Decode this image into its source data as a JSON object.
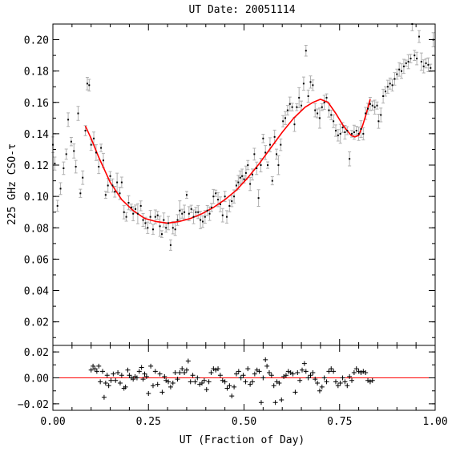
{
  "chart_data": {
    "type": "scatter",
    "title": "UT Date: 20051114",
    "xlabel": "UT (Fraction of Day)",
    "ylabel": "225 GHz CSO-τ",
    "colors": {
      "points": "#000000",
      "error_bars": "#b0b0b0",
      "fit": "#ff0000",
      "zero_line": "#ff0000",
      "axes": "#000000"
    },
    "main_panel": {
      "xlim": [
        0.0,
        1.0
      ],
      "ylim": [
        0.005,
        0.21
      ],
      "xticks": [
        0.0,
        0.25,
        0.5,
        0.75,
        1.0
      ],
      "xtick_labels": [
        "0.00",
        "0.25",
        "0.50",
        "0.75",
        "1.00"
      ],
      "yticks": [
        0.02,
        0.04,
        0.06,
        0.08,
        0.1,
        0.12,
        0.14,
        0.16,
        0.18,
        0.2
      ],
      "ytick_labels": [
        "0.02",
        "0.04",
        "0.06",
        "0.08",
        "0.10",
        "0.12",
        "0.14",
        "0.16",
        "0.18",
        "0.20"
      ],
      "points": [
        [
          0.0,
          0.133
        ],
        [
          0.005,
          0.121
        ],
        [
          0.012,
          0.094
        ],
        [
          0.02,
          0.105
        ],
        [
          0.028,
          0.118
        ],
        [
          0.035,
          0.127
        ],
        [
          0.04,
          0.149
        ],
        [
          0.048,
          0.135
        ],
        [
          0.055,
          0.129
        ],
        [
          0.06,
          0.119
        ],
        [
          0.066,
          0.153
        ],
        [
          0.072,
          0.102
        ],
        [
          0.078,
          0.112
        ],
        [
          0.085,
          0.142
        ],
        [
          0.09,
          0.172
        ],
        [
          0.095,
          0.171
        ],
        [
          0.1,
          0.133
        ],
        [
          0.107,
          0.137
        ],
        [
          0.113,
          0.128
        ],
        [
          0.12,
          0.119
        ],
        [
          0.126,
          0.131
        ],
        [
          0.132,
          0.123
        ],
        [
          0.138,
          0.101
        ],
        [
          0.144,
          0.107
        ],
        [
          0.15,
          0.113
        ],
        [
          0.156,
          0.107
        ],
        [
          0.162,
          0.103
        ],
        [
          0.168,
          0.109
        ],
        [
          0.175,
          0.102
        ],
        [
          0.18,
          0.109
        ],
        [
          0.186,
          0.09
        ],
        [
          0.192,
          0.087
        ],
        [
          0.198,
          0.096
        ],
        [
          0.205,
          0.093
        ],
        [
          0.21,
          0.089
        ],
        [
          0.216,
          0.092
        ],
        [
          0.222,
          0.089
        ],
        [
          0.23,
          0.094
        ],
        [
          0.236,
          0.085
        ],
        [
          0.242,
          0.083
        ],
        [
          0.248,
          0.08
        ],
        [
          0.255,
          0.087
        ],
        [
          0.262,
          0.079
        ],
        [
          0.268,
          0.087
        ],
        [
          0.274,
          0.088
        ],
        [
          0.28,
          0.081
        ],
        [
          0.285,
          0.076
        ],
        [
          0.29,
          0.085
        ],
        [
          0.296,
          0.08
        ],
        [
          0.302,
          0.083
        ],
        [
          0.308,
          0.069
        ],
        [
          0.314,
          0.08
        ],
        [
          0.32,
          0.079
        ],
        [
          0.326,
          0.085
        ],
        [
          0.332,
          0.091
        ],
        [
          0.338,
          0.089
        ],
        [
          0.344,
          0.09
        ],
        [
          0.35,
          0.101
        ],
        [
          0.356,
          0.089
        ],
        [
          0.362,
          0.092
        ],
        [
          0.368,
          0.087
        ],
        [
          0.374,
          0.09
        ],
        [
          0.38,
          0.09
        ],
        [
          0.386,
          0.085
        ],
        [
          0.392,
          0.084
        ],
        [
          0.398,
          0.087
        ],
        [
          0.404,
          0.091
        ],
        [
          0.41,
          0.089
        ],
        [
          0.415,
          0.093
        ],
        [
          0.42,
          0.1
        ],
        [
          0.426,
          0.102
        ],
        [
          0.432,
          0.098
        ],
        [
          0.438,
          0.095
        ],
        [
          0.444,
          0.088
        ],
        [
          0.45,
          0.1
        ],
        [
          0.455,
          0.087
        ],
        [
          0.462,
          0.094
        ],
        [
          0.468,
          0.097
        ],
        [
          0.474,
          0.1
        ],
        [
          0.48,
          0.107
        ],
        [
          0.485,
          0.109
        ],
        [
          0.49,
          0.112
        ],
        [
          0.495,
          0.113
        ],
        [
          0.5,
          0.111
        ],
        [
          0.505,
          0.115
        ],
        [
          0.51,
          0.12
        ],
        [
          0.516,
          0.108
        ],
        [
          0.522,
          0.114
        ],
        [
          0.527,
          0.127
        ],
        [
          0.533,
          0.118
        ],
        [
          0.538,
          0.099
        ],
        [
          0.544,
          0.12
        ],
        [
          0.55,
          0.137
        ],
        [
          0.556,
          0.128
        ],
        [
          0.562,
          0.12
        ],
        [
          0.568,
          0.133
        ],
        [
          0.574,
          0.11
        ],
        [
          0.58,
          0.138
        ],
        [
          0.585,
          0.127
        ],
        [
          0.59,
          0.12
        ],
        [
          0.596,
          0.133
        ],
        [
          0.602,
          0.148
        ],
        [
          0.608,
          0.15
        ],
        [
          0.614,
          0.155
        ],
        [
          0.62,
          0.159
        ],
        [
          0.626,
          0.157
        ],
        [
          0.632,
          0.146
        ],
        [
          0.638,
          0.157
        ],
        [
          0.644,
          0.163
        ],
        [
          0.65,
          0.158
        ],
        [
          0.656,
          0.172
        ],
        [
          0.662,
          0.193
        ],
        [
          0.668,
          0.164
        ],
        [
          0.674,
          0.173
        ],
        [
          0.68,
          0.171
        ],
        [
          0.686,
          0.155
        ],
        [
          0.692,
          0.153
        ],
        [
          0.698,
          0.15
        ],
        [
          0.704,
          0.157
        ],
        [
          0.71,
          0.16
        ],
        [
          0.716,
          0.163
        ],
        [
          0.722,
          0.155
        ],
        [
          0.728,
          0.152
        ],
        [
          0.734,
          0.148
        ],
        [
          0.74,
          0.142
        ],
        [
          0.746,
          0.139
        ],
        [
          0.752,
          0.14
        ],
        [
          0.758,
          0.144
        ],
        [
          0.764,
          0.141
        ],
        [
          0.77,
          0.142
        ],
        [
          0.776,
          0.124
        ],
        [
          0.782,
          0.14
        ],
        [
          0.788,
          0.141
        ],
        [
          0.794,
          0.142
        ],
        [
          0.8,
          0.14
        ],
        [
          0.806,
          0.143
        ],
        [
          0.812,
          0.14
        ],
        [
          0.818,
          0.153
        ],
        [
          0.824,
          0.156
        ],
        [
          0.83,
          0.159
        ],
        [
          0.836,
          0.158
        ],
        [
          0.842,
          0.157
        ],
        [
          0.848,
          0.158
        ],
        [
          0.852,
          0.148
        ],
        [
          0.858,
          0.152
        ],
        [
          0.864,
          0.164
        ],
        [
          0.87,
          0.167
        ],
        [
          0.876,
          0.17
        ],
        [
          0.882,
          0.172
        ],
        [
          0.888,
          0.171
        ],
        [
          0.894,
          0.175
        ],
        [
          0.9,
          0.178
        ],
        [
          0.906,
          0.181
        ],
        [
          0.912,
          0.18
        ],
        [
          0.918,
          0.183
        ],
        [
          0.924,
          0.185
        ],
        [
          0.93,
          0.186
        ],
        [
          0.936,
          0.188
        ],
        [
          0.94,
          0.21
        ],
        [
          0.946,
          0.19
        ],
        [
          0.952,
          0.188
        ],
        [
          0.958,
          0.202
        ],
        [
          0.964,
          0.186
        ],
        [
          0.97,
          0.183
        ],
        [
          0.976,
          0.185
        ],
        [
          0.982,
          0.184
        ],
        [
          0.988,
          0.182
        ],
        [
          0.995,
          0.2
        ]
      ],
      "fit_curve": [
        [
          0.085,
          0.145
        ],
        [
          0.1,
          0.137
        ],
        [
          0.12,
          0.125
        ],
        [
          0.15,
          0.109
        ],
        [
          0.18,
          0.098
        ],
        [
          0.21,
          0.091
        ],
        [
          0.24,
          0.086
        ],
        [
          0.27,
          0.084
        ],
        [
          0.3,
          0.083
        ],
        [
          0.33,
          0.084
        ],
        [
          0.36,
          0.086
        ],
        [
          0.39,
          0.089
        ],
        [
          0.42,
          0.093
        ],
        [
          0.45,
          0.098
        ],
        [
          0.48,
          0.104
        ],
        [
          0.51,
          0.112
        ],
        [
          0.54,
          0.121
        ],
        [
          0.57,
          0.131
        ],
        [
          0.6,
          0.141
        ],
        [
          0.63,
          0.15
        ],
        [
          0.66,
          0.157
        ],
        [
          0.68,
          0.16
        ],
        [
          0.7,
          0.162
        ],
        [
          0.72,
          0.16
        ],
        [
          0.74,
          0.153
        ],
        [
          0.76,
          0.145
        ],
        [
          0.78,
          0.139
        ],
        [
          0.79,
          0.138
        ],
        [
          0.8,
          0.139
        ],
        [
          0.81,
          0.145
        ],
        [
          0.82,
          0.153
        ],
        [
          0.83,
          0.162
        ]
      ]
    },
    "residual_panel": {
      "xlim": [
        0.0,
        1.0
      ],
      "ylim": [
        -0.025,
        0.025
      ],
      "yticks": [
        -0.02,
        0.0,
        0.02
      ],
      "ytick_labels": [
        "−0.02",
        "0.00",
        "0.02"
      ],
      "zero_line": 0.0,
      "points": [
        [
          0.1,
          0.006
        ],
        [
          0.105,
          0.009
        ],
        [
          0.11,
          0.007
        ],
        [
          0.115,
          0.005
        ],
        [
          0.12,
          0.009
        ],
        [
          0.124,
          -0.003
        ],
        [
          0.13,
          0.005
        ],
        [
          0.134,
          -0.015
        ],
        [
          0.138,
          -0.004
        ],
        [
          0.142,
          0.002
        ],
        [
          0.146,
          -0.006
        ],
        [
          0.152,
          -0.002
        ],
        [
          0.158,
          0.003
        ],
        [
          0.164,
          -0.002
        ],
        [
          0.17,
          0.004
        ],
        [
          0.176,
          -0.004
        ],
        [
          0.18,
          0.002
        ],
        [
          0.186,
          -0.008
        ],
        [
          0.19,
          -0.007
        ],
        [
          0.196,
          0.006
        ],
        [
          0.2,
          0.002
        ],
        [
          0.205,
          0.0
        ],
        [
          0.21,
          -0.001
        ],
        [
          0.215,
          0.001
        ],
        [
          0.22,
          0.0
        ],
        [
          0.226,
          0.005
        ],
        [
          0.232,
          0.008
        ],
        [
          0.236,
          -0.001
        ],
        [
          0.24,
          0.003
        ],
        [
          0.245,
          0.001
        ],
        [
          0.25,
          -0.012
        ],
        [
          0.256,
          0.009
        ],
        [
          0.262,
          -0.006
        ],
        [
          0.268,
          0.005
        ],
        [
          0.274,
          -0.005
        ],
        [
          0.28,
          0.003
        ],
        [
          0.286,
          -0.011
        ],
        [
          0.292,
          0.001
        ],
        [
          0.296,
          -0.002
        ],
        [
          0.302,
          -0.003
        ],
        [
          0.308,
          -0.007
        ],
        [
          0.314,
          -0.004
        ],
        [
          0.32,
          0.004
        ],
        [
          0.326,
          -0.001
        ],
        [
          0.332,
          0.004
        ],
        [
          0.338,
          0.007
        ],
        [
          0.344,
          0.004
        ],
        [
          0.35,
          0.006
        ],
        [
          0.354,
          0.013
        ],
        [
          0.36,
          -0.003
        ],
        [
          0.366,
          0.002
        ],
        [
          0.372,
          -0.003
        ],
        [
          0.378,
          0.0
        ],
        [
          0.384,
          -0.005
        ],
        [
          0.39,
          -0.004
        ],
        [
          0.396,
          -0.002
        ],
        [
          0.402,
          -0.009
        ],
        [
          0.408,
          -0.003
        ],
        [
          0.414,
          0.004
        ],
        [
          0.42,
          0.007
        ],
        [
          0.426,
          0.006
        ],
        [
          0.432,
          0.007
        ],
        [
          0.438,
          0.002
        ],
        [
          0.444,
          -0.002
        ],
        [
          0.45,
          -0.003
        ],
        [
          0.456,
          -0.008
        ],
        [
          0.462,
          -0.006
        ],
        [
          0.468,
          -0.014
        ],
        [
          0.474,
          -0.007
        ],
        [
          0.48,
          0.003
        ],
        [
          0.486,
          0.005
        ],
        [
          0.492,
          0.0
        ],
        [
          0.498,
          0.002
        ],
        [
          0.504,
          -0.003
        ],
        [
          0.51,
          0.007
        ],
        [
          0.516,
          -0.005
        ],
        [
          0.522,
          -0.003
        ],
        [
          0.528,
          0.003
        ],
        [
          0.534,
          0.006
        ],
        [
          0.54,
          0.005
        ],
        [
          0.545,
          -0.019
        ],
        [
          0.55,
          0.0
        ],
        [
          0.556,
          0.014
        ],
        [
          0.56,
          0.009
        ],
        [
          0.566,
          0.004
        ],
        [
          0.572,
          0.002
        ],
        [
          0.578,
          -0.006
        ],
        [
          0.582,
          -0.019
        ],
        [
          0.586,
          -0.003
        ],
        [
          0.592,
          -0.004
        ],
        [
          0.598,
          -0.017
        ],
        [
          0.604,
          0.001
        ],
        [
          0.61,
          0.002
        ],
        [
          0.616,
          0.005
        ],
        [
          0.622,
          0.004
        ],
        [
          0.628,
          0.003
        ],
        [
          0.634,
          -0.011
        ],
        [
          0.64,
          0.004
        ],
        [
          0.646,
          -0.002
        ],
        [
          0.652,
          0.006
        ],
        [
          0.658,
          0.011
        ],
        [
          0.662,
          0.005
        ],
        [
          0.668,
          0.0
        ],
        [
          0.674,
          0.002
        ],
        [
          0.68,
          0.004
        ],
        [
          0.686,
          -0.001
        ],
        [
          0.692,
          -0.004
        ],
        [
          0.698,
          -0.01
        ],
        [
          0.704,
          -0.007
        ],
        [
          0.71,
          0.0
        ],
        [
          0.716,
          -0.003
        ],
        [
          0.722,
          0.005
        ],
        [
          0.728,
          0.007
        ],
        [
          0.734,
          0.005
        ],
        [
          0.74,
          -0.003
        ],
        [
          0.746,
          -0.006
        ],
        [
          0.752,
          -0.004
        ],
        [
          0.758,
          0.0
        ],
        [
          0.764,
          -0.003
        ],
        [
          0.77,
          -0.006
        ],
        [
          0.776,
          0.001
        ],
        [
          0.782,
          -0.002
        ],
        [
          0.788,
          0.004
        ],
        [
          0.794,
          0.007
        ],
        [
          0.8,
          0.005
        ],
        [
          0.806,
          0.004
        ],
        [
          0.812,
          0.005
        ],
        [
          0.818,
          0.004
        ],
        [
          0.824,
          -0.002
        ],
        [
          0.83,
          -0.003
        ],
        [
          0.836,
          -0.002
        ]
      ]
    }
  }
}
